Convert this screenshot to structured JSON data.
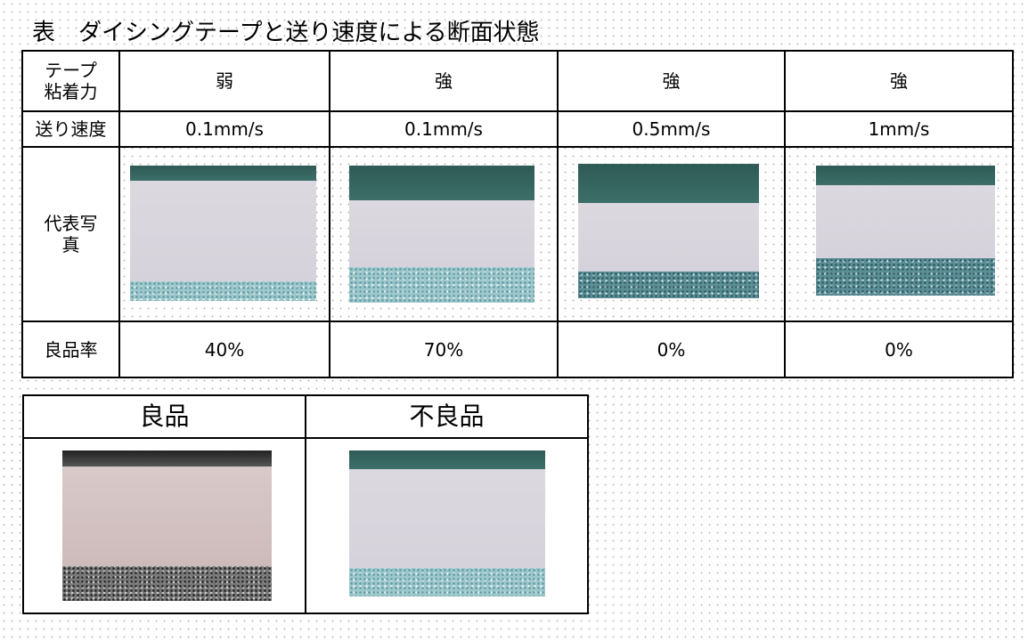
{
  "title": "表　ダイシングテープと送り速度による断面状態",
  "table": {
    "header": {
      "label": [
        "テープ",
        "粘着力"
      ],
      "cells": [
        "弱",
        "強",
        "強",
        "強"
      ]
    },
    "rows": [
      {
        "label": [
          "送り速度"
        ],
        "cells": [
          "0.1mm/s",
          "0.1mm/s",
          "0.5mm/s",
          "1mm/s"
        ]
      },
      {
        "label": [
          "代表写",
          "真"
        ]
      },
      {
        "label": [
          "良品率"
        ],
        "cells": [
          "40%",
          "70%",
          "0%",
          "0%"
        ]
      }
    ]
  },
  "comparison": {
    "headers": [
      "良品",
      "不良品"
    ]
  }
}
